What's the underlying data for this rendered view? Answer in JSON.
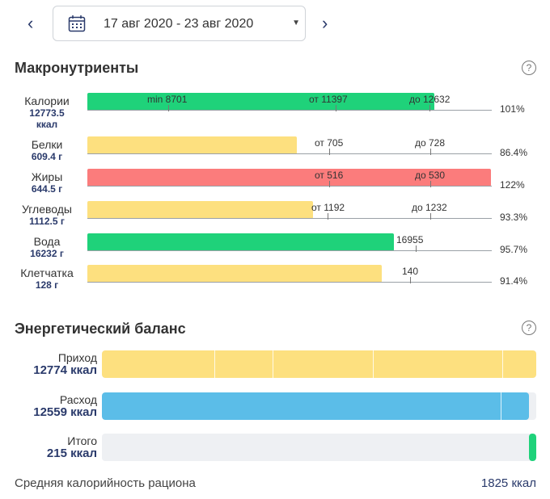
{
  "header": {
    "prev_label": "‹",
    "next_label": "›",
    "date_range": "17 авг 2020 - 23 авг 2020"
  },
  "macros": {
    "title": "Макронутриенты",
    "help": "?",
    "rows": [
      {
        "name": "Калории",
        "value": "12773.5",
        "unit": "ккал",
        "percent": "101%",
        "fill_fraction": 0.86,
        "color": "#1fd27a",
        "labels": [
          "min 8701",
          "от 11397",
          "до 12632"
        ]
      },
      {
        "name": "Белки",
        "value": "609.4 г",
        "percent": "86.4%",
        "fill_fraction": 0.52,
        "color": "#fde07f",
        "labels": [
          "от 705",
          "до 728"
        ]
      },
      {
        "name": "Жиры",
        "value": "644.5 г",
        "percent": "122%",
        "fill_fraction": 1.0,
        "color": "#fb7c7c",
        "labels": [
          "от 516",
          "до 530"
        ]
      },
      {
        "name": "Углеводы",
        "value": "1112.5 г",
        "percent": "93.3%",
        "fill_fraction": 0.56,
        "color": "#fde07f",
        "labels": [
          "от 1192",
          "до 1232"
        ]
      },
      {
        "name": "Вода",
        "value": "16232 г",
        "percent": "95.7%",
        "fill_fraction": 0.76,
        "color": "#1fd27a",
        "labels": [
          "16955"
        ]
      },
      {
        "name": "Клетчатка",
        "value": "128 г",
        "percent": "91.4%",
        "fill_fraction": 0.73,
        "color": "#fde07f",
        "labels": [
          "140"
        ]
      }
    ]
  },
  "energy": {
    "title": "Энергетический баланс",
    "help": "?",
    "rows": [
      {
        "name": "Приход",
        "value": "12774 ккал",
        "fill_fraction": 1.0,
        "color": "#fde07f"
      },
      {
        "name": "Расход",
        "value": "12559 ккал",
        "fill_fraction": 0.983,
        "color": "#5bbde8"
      },
      {
        "name": "Итого",
        "value": "215 ккал",
        "fill_fraction": 0.017,
        "color": "#1fd27a"
      }
    ]
  },
  "footer": {
    "label": "Средняя калорийность рациона",
    "value": "1825 ккал"
  }
}
